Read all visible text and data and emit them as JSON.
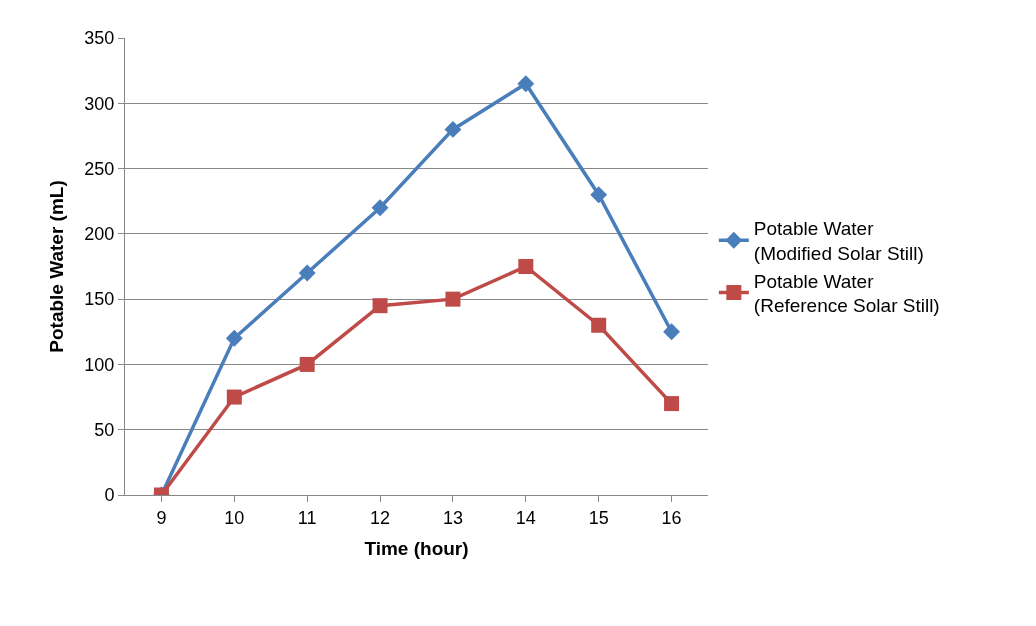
{
  "chart_data": {
    "type": "line",
    "xlabel": "Time (hour)",
    "ylabel": "Potable Water (mL)",
    "categories": [
      "9",
      "10",
      "11",
      "12",
      "13",
      "14",
      "15",
      "16"
    ],
    "series": [
      {
        "name": "Potable Water\n(Modified Solar Still)",
        "color": "#4a7ebb",
        "marker": "diamond",
        "values": [
          0,
          120,
          170,
          220,
          280,
          315,
          230,
          125
        ]
      },
      {
        "name": "Potable Water\n(Reference Solar Still)",
        "color": "#be4b48",
        "marker": "square",
        "values": [
          0,
          75,
          100,
          145,
          150,
          175,
          130,
          70
        ]
      }
    ],
    "ylim": [
      0,
      350
    ],
    "yticks": [
      0,
      50,
      100,
      150,
      200,
      250,
      300,
      350
    ],
    "grid": "y",
    "legend": "right",
    "line_style": "solid"
  }
}
